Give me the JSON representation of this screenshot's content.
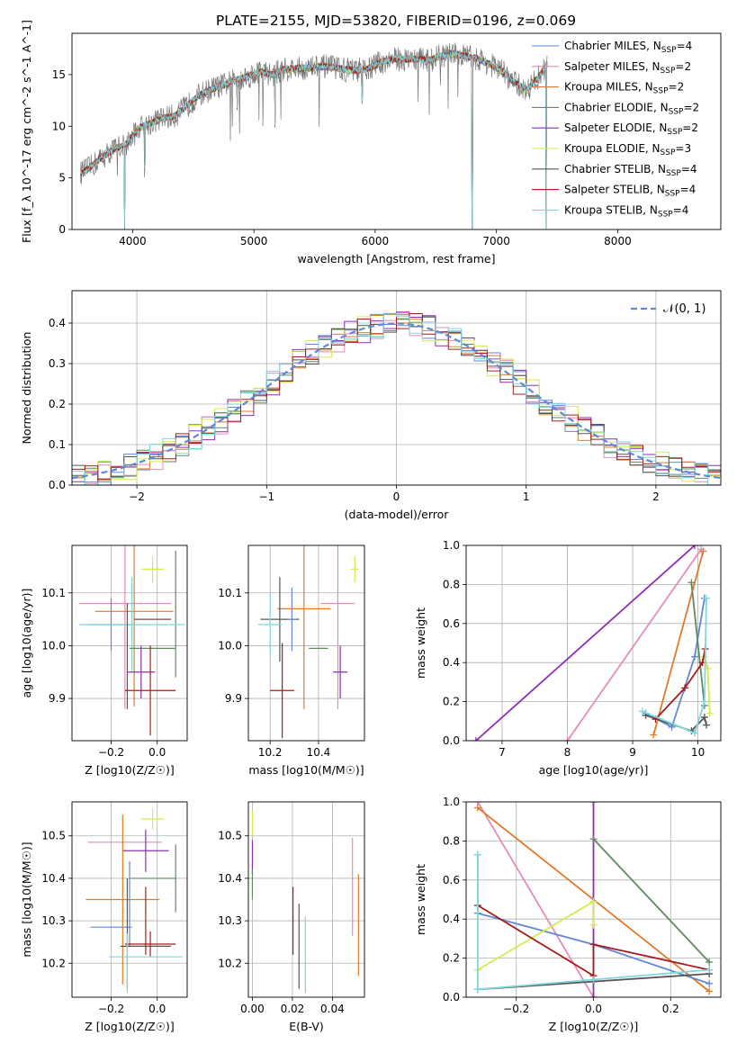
{
  "figure": {
    "title": "PLATE=2155, MJD=53820, FIBERID=0196, z=0.069"
  },
  "colors": {
    "chabrier_miles": "#5f88d6",
    "salpeter_miles": "#e58bbb",
    "kroupa_miles": "#e07b2d",
    "chabrier_elodie": "#5f8a5f",
    "salpeter_elodie": "#8e2db3",
    "kroupa_elodie": "#d4ea4e",
    "chabrier_stelib": "#555555",
    "salpeter_stelib": "#a51d1d",
    "kroupa_stelib": "#7fd6de",
    "normal_line": "#5f88d6",
    "grid": "#b0b0b0"
  },
  "chart_data": [
    {
      "id": "spectrum",
      "type": "line",
      "xlabel": "wavelength [Angstrom, rest frame]",
      "ylabel": "Flux [f_λ 10^-17 erg cm^-2 s^-1 A^-1]",
      "xlim": [
        3500,
        8850
      ],
      "ylim": [
        0,
        19
      ],
      "xticks": [
        4000,
        5000,
        6000,
        7000,
        8000
      ],
      "yticks": [
        0,
        5,
        10,
        15
      ],
      "grid": false,
      "legend_position": "right",
      "legend": [
        {
          "label": "Chabrier MILES, N_SSP=4",
          "color_key": "chabrier_miles"
        },
        {
          "label": "Salpeter MILES, N_SSP=2",
          "color_key": "salpeter_miles"
        },
        {
          "label": "Kroupa MILES, N_SSP=2",
          "color_key": "kroupa_miles"
        },
        {
          "label": "Chabrier ELODIE, N_SSP=2",
          "color_key": "chabrier_elodie"
        },
        {
          "label": "Salpeter ELODIE, N_SSP=2",
          "color_key": "salpeter_elodie"
        },
        {
          "label": "Kroupa ELODIE, N_SSP=3",
          "color_key": "kroupa_elodie"
        },
        {
          "label": "Chabrier STELIB, N_SSP=4",
          "color_key": "chabrier_stelib"
        },
        {
          "label": "Salpeter STELIB, N_SSP=4",
          "color_key": "salpeter_stelib"
        },
        {
          "label": "Kroupa STELIB, N_SSP=4",
          "color_key": "kroupa_stelib"
        }
      ],
      "continuum": {
        "x": [
          3570,
          3650,
          3750,
          3850,
          3950,
          4050,
          4150,
          4250,
          4350,
          4450,
          4550,
          4650,
          4750,
          4850,
          4950,
          5050,
          5150,
          5250,
          5350,
          5450,
          5550,
          5650,
          5750,
          5850,
          5950,
          6050,
          6150,
          6250,
          6350,
          6450,
          6550,
          6650,
          6750,
          6850,
          6950,
          7050,
          7150,
          7250,
          7350,
          7420
        ],
        "y": [
          5.5,
          6.0,
          7.0,
          7.8,
          8.3,
          9.8,
          10.3,
          10.8,
          11.0,
          12.0,
          13.0,
          13.6,
          14.0,
          14.5,
          14.8,
          15.3,
          15.0,
          15.5,
          15.6,
          15.6,
          15.8,
          15.7,
          15.5,
          15.4,
          15.6,
          16.2,
          16.5,
          16.5,
          16.5,
          16.4,
          16.8,
          17.0,
          16.8,
          16.5,
          16.0,
          15.3,
          14.2,
          13.5,
          14.8,
          16.0
        ]
      },
      "absorption_features": [
        {
          "x": 3933,
          "y": 0.0
        },
        {
          "x": 4102,
          "y": 6.2
        },
        {
          "x": 4861,
          "y": 11.9
        },
        {
          "x": 5175,
          "y": 10.2
        },
        {
          "x": 5892,
          "y": 12.5
        },
        {
          "x": 6800,
          "y": 0.0
        },
        {
          "x": 7410,
          "y": 0.0
        }
      ]
    },
    {
      "id": "residuals",
      "type": "bar",
      "xlabel": "(data-model)/error",
      "ylabel": "Normed distribution",
      "xlim": [
        -2.5,
        2.5
      ],
      "ylim": [
        0,
        0.48
      ],
      "xticks": [
        -2,
        -1,
        0,
        1,
        2
      ],
      "yticks": [
        0.0,
        0.1,
        0.2,
        0.3,
        0.4
      ],
      "grid": true,
      "legend_position": "upper right",
      "legend": [
        {
          "label": "𝒩(0, 1)",
          "color_key": "normal_line",
          "style": "dashed"
        }
      ],
      "bin_width": 0.1,
      "model": "standard normal density",
      "series": [
        {
          "color_key": "chabrier_miles",
          "scatter": 0.03
        },
        {
          "color_key": "salpeter_miles",
          "scatter": 0.035
        },
        {
          "color_key": "kroupa_miles",
          "scatter": 0.03
        },
        {
          "color_key": "chabrier_elodie",
          "scatter": 0.03
        },
        {
          "color_key": "salpeter_elodie",
          "scatter": 0.035
        },
        {
          "color_key": "kroupa_elodie",
          "scatter": 0.035
        },
        {
          "color_key": "chabrier_stelib",
          "scatter": 0.03
        },
        {
          "color_key": "salpeter_stelib",
          "scatter": 0.03
        },
        {
          "color_key": "kroupa_stelib",
          "scatter": 0.03
        }
      ]
    },
    {
      "id": "age_vs_Z",
      "type": "scatter",
      "xlabel": "Z [log10(Z/Z☉)]",
      "ylabel": "age [log10(age/yr)]",
      "xlim": [
        -0.37,
        0.13
      ],
      "ylim": [
        9.82,
        10.19
      ],
      "xticks": [
        -0.2,
        0.0
      ],
      "yticks": [
        9.9,
        10.0,
        10.1
      ],
      "grid": true,
      "errorbars": [
        {
          "color_key": "kroupa_elodie",
          "x": -0.02,
          "y": 10.145,
          "xerr": 0.05,
          "yerr": 0.025
        },
        {
          "color_key": "salpeter_miles",
          "x": -0.14,
          "y": 10.08,
          "xerr": 0.2,
          "yerr": 0.2
        },
        {
          "color_key": "kroupa_miles",
          "x": -0.1,
          "y": 10.065,
          "xerr": 0.17,
          "yerr": 0.18
        },
        {
          "color_key": "chabrier_elodie",
          "x": 0.08,
          "y": 10.06,
          "xerr": 0.0,
          "yerr": 0.12
        },
        {
          "color_key": "chabrier_stelib",
          "x": -0.02,
          "y": 10.05,
          "xerr": 0.08,
          "yerr": 0.0
        },
        {
          "color_key": "chabrier_miles",
          "x": -0.2,
          "y": 10.04,
          "xerr": 0.1,
          "yerr": 0.05
        },
        {
          "color_key": "kroupa_stelib",
          "x": -0.11,
          "y": 10.04,
          "xerr": 0.23,
          "yerr": 0.09
        },
        {
          "color_key": "chabrier_elodie",
          "x": -0.02,
          "y": 9.995,
          "xerr": 0.1,
          "yerr": 0.0
        },
        {
          "color_key": "salpeter_elodie",
          "x": -0.07,
          "y": 9.95,
          "xerr": 0.06,
          "yerr": 0.05
        },
        {
          "color_key": "chabrier_stelib",
          "x": -0.13,
          "y": 9.98,
          "xerr": 0.0,
          "yerr": 0.1
        },
        {
          "color_key": "salpeter_stelib",
          "x": -0.03,
          "y": 9.915,
          "xerr": 0.11,
          "yerr": 0.085
        }
      ]
    },
    {
      "id": "age_vs_mass",
      "type": "scatter",
      "xlabel": "mass [log10(M/M☉)]",
      "ylabel": "",
      "xlim": [
        10.11,
        10.59
      ],
      "ylim": [
        9.82,
        10.19
      ],
      "xticks": [
        10.2,
        10.4
      ],
      "yticks": [
        9.9,
        10.0,
        10.1
      ],
      "grid": true,
      "errorbars": [
        {
          "color_key": "kroupa_elodie",
          "x": 10.55,
          "y": 10.145,
          "xerr": 0.015,
          "yerr": 0.025
        },
        {
          "color_key": "salpeter_miles",
          "x": 10.48,
          "y": 10.08,
          "xerr": 0.07,
          "yerr": 0.2
        },
        {
          "color_key": "kroupa_miles",
          "x": 10.34,
          "y": 10.07,
          "xerr": 0.11,
          "yerr": 0.19
        },
        {
          "color_key": "chabrier_stelib",
          "x": 10.24,
          "y": 10.05,
          "xerr": 0.08,
          "yerr": 0.08
        },
        {
          "color_key": "chabrier_miles",
          "x": 10.29,
          "y": 10.05,
          "xerr": 0.02,
          "yerr": 0.06
        },
        {
          "color_key": "kroupa_stelib",
          "x": 10.2,
          "y": 10.04,
          "xerr": 0.05,
          "yerr": 0.06
        },
        {
          "color_key": "chabrier_elodie",
          "x": 10.4,
          "y": 9.995,
          "xerr": 0.04,
          "yerr": 0.0
        },
        {
          "color_key": "salpeter_elodie",
          "x": 10.49,
          "y": 9.95,
          "xerr": 0.03,
          "yerr": 0.05
        },
        {
          "color_key": "salpeter_stelib",
          "x": 10.25,
          "y": 9.915,
          "xerr": 0.05,
          "yerr": 0.09
        }
      ]
    },
    {
      "id": "mass_weight_vs_age",
      "type": "line",
      "xlabel": "age [log10(age/yr)]",
      "ylabel": "mass weight",
      "xlim": [
        6.45,
        10.35
      ],
      "ylim": [
        0,
        1
      ],
      "xticks": [
        7,
        8,
        9,
        10
      ],
      "yticks": [
        0.0,
        0.2,
        0.4,
        0.6,
        0.8,
        1.0
      ],
      "grid": true,
      "series": [
        {
          "color_key": "salpeter_elodie",
          "x": [
            6.6,
            9.95
          ],
          "y": [
            0.0,
            1.0
          ]
        },
        {
          "color_key": "salpeter_miles",
          "x": [
            8.0,
            10.05
          ],
          "y": [
            0.0,
            0.98
          ]
        },
        {
          "color_key": "kroupa_miles",
          "x": [
            9.32,
            10.08
          ],
          "y": [
            0.03,
            0.97
          ]
        },
        {
          "color_key": "chabrier_miles",
          "x": [
            9.2,
            9.6,
            9.95,
            10.1
          ],
          "y": [
            0.14,
            0.07,
            0.43,
            0.73
          ]
        },
        {
          "color_key": "chabrier_elodie",
          "x": [
            9.9,
            10.1
          ],
          "y": [
            0.81,
            0.18
          ]
        },
        {
          "color_key": "kroupa_elodie",
          "x": [
            10.1,
            10.15,
            10.18
          ],
          "y": [
            0.43,
            0.37,
            0.14
          ]
        },
        {
          "color_key": "chabrier_stelib",
          "x": [
            9.2,
            9.9,
            10.1,
            10.13
          ],
          "y": [
            0.13,
            0.05,
            0.12,
            0.08
          ]
        },
        {
          "color_key": "salpeter_stelib",
          "x": [
            9.35,
            9.8,
            10.07,
            10.11
          ],
          "y": [
            0.11,
            0.27,
            0.4,
            0.47
          ]
        },
        {
          "color_key": "kroupa_stelib",
          "x": [
            9.15,
            9.95,
            10.1,
            10.13
          ],
          "y": [
            0.15,
            0.04,
            0.2,
            0.73
          ]
        }
      ]
    },
    {
      "id": "mass_vs_Z",
      "type": "scatter",
      "xlabel": "Z [log10(Z/Z☉)]",
      "ylabel": "mass [log10(M/M☉)]",
      "xlim": [
        -0.37,
        0.13
      ],
      "ylim": [
        10.12,
        10.58
      ],
      "xticks": [
        -0.2,
        0.0
      ],
      "yticks": [
        10.2,
        10.3,
        10.4,
        10.5
      ],
      "grid": true,
      "errorbars": [
        {
          "color_key": "kroupa_elodie",
          "x": -0.02,
          "y": 10.54,
          "xerr": 0.05,
          "yerr": 0.025
        },
        {
          "color_key": "salpeter_miles",
          "x": -0.14,
          "y": 10.485,
          "xerr": 0.16,
          "yerr": 0.0
        },
        {
          "color_key": "salpeter_elodie",
          "x": -0.05,
          "y": 10.465,
          "xerr": 0.1,
          "yerr": 0.05
        },
        {
          "color_key": "chabrier_elodie",
          "x": 0.08,
          "y": 10.4,
          "xerr": 0.0,
          "yerr": 0.08
        },
        {
          "color_key": "chabrier_elodie",
          "x": -0.02,
          "y": 10.4,
          "xerr": 0.1,
          "yerr": 0.0
        },
        {
          "color_key": "kroupa_miles",
          "x": -0.15,
          "y": 10.35,
          "xerr": 0.16,
          "yerr": 0.2
        },
        {
          "color_key": "chabrier_miles",
          "x": -0.2,
          "y": 10.285,
          "xerr": 0.09,
          "yerr": 0.0
        },
        {
          "color_key": "chabrier_miles",
          "x": -0.12,
          "y": 10.34,
          "xerr": 0.0,
          "yerr": 0.1
        },
        {
          "color_key": "salpeter_stelib",
          "x": -0.03,
          "y": 10.245,
          "xerr": 0.11,
          "yerr": 0.03
        },
        {
          "color_key": "chabrier_stelib",
          "x": -0.05,
          "y": 10.24,
          "xerr": 0.11,
          "yerr": 0.0
        },
        {
          "color_key": "chabrier_stelib",
          "x": -0.13,
          "y": 10.27,
          "xerr": 0.0,
          "yerr": 0.13
        },
        {
          "color_key": "kroupa_stelib",
          "x": -0.05,
          "y": 10.215,
          "xerr": 0.16,
          "yerr": 0.0
        },
        {
          "color_key": "salpeter_stelib",
          "x": -0.05,
          "y": 10.3,
          "xerr": 0.0,
          "yerr": 0.08
        },
        {
          "color_key": "kroupa_stelib",
          "x": -0.13,
          "y": 10.2,
          "xerr": 0.0,
          "yerr": 0.07
        }
      ]
    },
    {
      "id": "mass_vs_ebv",
      "type": "scatter",
      "xlabel": "E(B-V)",
      "ylabel": "",
      "xlim": [
        -0.002,
        0.056
      ],
      "ylim": [
        10.12,
        10.58
      ],
      "xticks": [
        0.0,
        0.02,
        0.04
      ],
      "yticks": [
        10.2,
        10.3,
        10.4,
        10.5
      ],
      "grid": true,
      "errorbars": [
        {
          "color_key": "kroupa_elodie",
          "x": 0.0,
          "y": 10.53,
          "xerr": 0.0,
          "yerr": 0.03
        },
        {
          "color_key": "salpeter_elodie",
          "x": 0.0,
          "y": 10.45,
          "xerr": 0.0,
          "yerr": 0.04
        },
        {
          "color_key": "chabrier_elodie",
          "x": 0.0,
          "y": 10.385,
          "xerr": 0.0,
          "yerr": 0.035
        },
        {
          "color_key": "salpeter_stelib",
          "x": 0.0203,
          "y": 10.3,
          "xerr": 0.0,
          "yerr": 0.08
        },
        {
          "color_key": "chabrier_stelib",
          "x": 0.0233,
          "y": 10.24,
          "xerr": 0.0,
          "yerr": 0.1
        },
        {
          "color_key": "kroupa_stelib",
          "x": 0.0265,
          "y": 10.22,
          "xerr": 0.0,
          "yerr": 0.09
        },
        {
          "color_key": "salpeter_miles",
          "x": 0.05,
          "y": 10.38,
          "xerr": 0.0,
          "yerr": 0.115
        },
        {
          "color_key": "kroupa_miles",
          "x": 0.053,
          "y": 10.29,
          "xerr": 0.0,
          "yerr": 0.12
        }
      ]
    },
    {
      "id": "mass_weight_vs_Z",
      "type": "line",
      "xlabel": "Z [log10(Z/Z☉)]",
      "ylabel": "mass weight",
      "xlim": [
        -0.33,
        0.33
      ],
      "ylim": [
        0,
        1
      ],
      "xticks": [
        -0.2,
        0.0,
        0.2
      ],
      "yticks": [
        0.0,
        0.2,
        0.4,
        0.6,
        0.8,
        1.0
      ],
      "grid": true,
      "series": [
        {
          "color_key": "salpeter_miles",
          "x": [
            -0.3,
            0.0
          ],
          "y": [
            1.0,
            0.0
          ]
        },
        {
          "color_key": "kroupa_miles",
          "x": [
            -0.3,
            0.3
          ],
          "y": [
            0.97,
            0.03
          ]
        },
        {
          "color_key": "salpeter_elodie",
          "x": [
            0.0,
            0.0
          ],
          "y": [
            1.0,
            0.0
          ]
        },
        {
          "color_key": "chabrier_elodie",
          "x": [
            0.0,
            0.3
          ],
          "y": [
            0.81,
            0.18
          ]
        },
        {
          "color_key": "chabrier_miles",
          "x": [
            -0.3,
            -0.3,
            0.0,
            0.3
          ],
          "y": [
            0.73,
            0.43,
            0.27,
            0.07
          ]
        },
        {
          "color_key": "kroupa_elodie",
          "x": [
            -0.3,
            0.0,
            0.0
          ],
          "y": [
            0.14,
            0.49,
            0.37
          ]
        },
        {
          "color_key": "salpeter_stelib",
          "x": [
            -0.3,
            0.0,
            0.0,
            0.3
          ],
          "y": [
            0.47,
            0.11,
            0.27,
            0.14
          ]
        },
        {
          "color_key": "chabrier_stelib",
          "x": [
            -0.3,
            0.0,
            0.3
          ],
          "y": [
            0.04,
            0.08,
            0.12
          ]
        },
        {
          "color_key": "kroupa_stelib",
          "x": [
            -0.3,
            -0.3,
            0.0,
            0.3
          ],
          "y": [
            0.73,
            0.04,
            0.09,
            0.14
          ]
        }
      ]
    }
  ]
}
